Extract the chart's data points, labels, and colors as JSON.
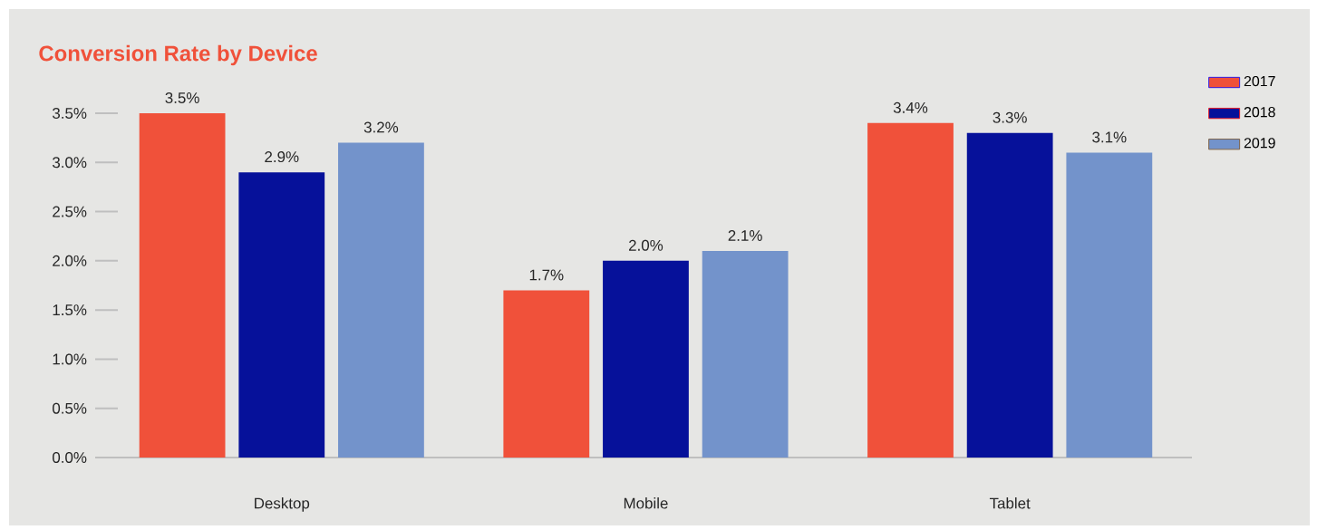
{
  "chart_data": {
    "type": "bar",
    "title": "Conversion Rate by Device",
    "categories": [
      "Desktop",
      "Mobile",
      "Tablet"
    ],
    "series": [
      {
        "name": "2017",
        "color": "#f0513a",
        "values": [
          3.5,
          1.7,
          3.4
        ],
        "value_labels": [
          "3.5%",
          "1.7%",
          "3.4%"
        ]
      },
      {
        "name": "2018",
        "color": "#06119a",
        "values": [
          2.9,
          2.0,
          3.3
        ],
        "value_labels": [
          "2.9%",
          "2.0%",
          "3.3%"
        ]
      },
      {
        "name": "2019",
        "color": "#7393cb",
        "values": [
          3.2,
          2.1,
          3.1
        ],
        "value_labels": [
          "3.2%",
          "2.1%",
          "3.1%"
        ]
      }
    ],
    "ylim": [
      0,
      3.5
    ],
    "yticks": [
      {
        "value": 0,
        "label": "0.0%"
      },
      {
        "value": 0.5,
        "label": "0.5%"
      },
      {
        "value": 1,
        "label": "1.0%"
      },
      {
        "value": 1.5,
        "label": "1.5%"
      },
      {
        "value": 2,
        "label": "2.0%"
      },
      {
        "value": 2.5,
        "label": "2.5%"
      },
      {
        "value": 3,
        "label": "3.0%"
      },
      {
        "value": 3.5,
        "label": "3.5%"
      }
    ],
    "grid": false,
    "legend": "top right"
  }
}
